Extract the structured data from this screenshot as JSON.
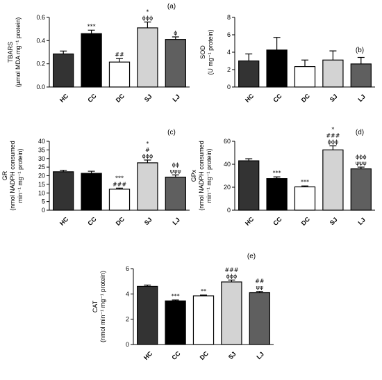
{
  "chart_data": [
    {
      "type": "bar",
      "panel": "(a)",
      "categories": [
        "HC",
        "CC",
        "DC",
        "SJ",
        "LJ"
      ],
      "values": [
        0.285,
        0.46,
        0.215,
        0.51,
        0.41
      ],
      "errors": [
        0.025,
        0.03,
        0.03,
        0.05,
        0.022
      ],
      "colors": [
        "#333333",
        "#000000",
        "#ffffff",
        "#d3d3d3",
        "#5f5f5f"
      ],
      "annotations": [
        [],
        [
          "***"
        ],
        [
          "##"
        ],
        [
          "*",
          "ϕϕϕ"
        ],
        [
          "ϕ"
        ]
      ],
      "ylabel": [
        "TBARS",
        "(µmol MDA mg⁻¹ protein)"
      ],
      "ylim": [
        0,
        0.6
      ],
      "yticks": [
        0.0,
        0.2,
        0.4,
        0.6
      ],
      "ytick_labels": [
        "0.0",
        "0.2",
        "0.4",
        "0.6"
      ]
    },
    {
      "type": "bar",
      "panel": "(b)",
      "categories": [
        "HC",
        "CC",
        "DC",
        "SJ",
        "LJ"
      ],
      "values": [
        3.0,
        4.25,
        2.35,
        3.1,
        2.65
      ],
      "errors": [
        0.8,
        1.45,
        0.75,
        1.05,
        0.75
      ],
      "colors": [
        "#333333",
        "#000000",
        "#ffffff",
        "#d3d3d3",
        "#5f5f5f"
      ],
      "annotations": [
        [],
        [],
        [],
        [],
        []
      ],
      "ylabel": [
        "SOD",
        "(U mg⁻¹ protein)"
      ],
      "ylim": [
        0,
        8
      ],
      "yticks": [
        0,
        2,
        4,
        6,
        8
      ],
      "ytick_labels": [
        "0",
        "2",
        "4",
        "6",
        "8"
      ]
    },
    {
      "type": "bar",
      "panel": "(c)",
      "categories": [
        "HC",
        "CC",
        "DC",
        "SJ",
        "LJ"
      ],
      "values": [
        22.3,
        21.4,
        12.2,
        27.5,
        19.2
      ],
      "errors": [
        0.9,
        1.2,
        0.6,
        1.6,
        1.3
      ],
      "colors": [
        "#333333",
        "#000000",
        "#ffffff",
        "#d3d3d3",
        "#5f5f5f"
      ],
      "annotations": [
        [],
        [],
        [
          "***",
          "###"
        ],
        [
          "*",
          "#",
          "ϕϕϕ"
        ],
        [
          "ϕϕ",
          "ψψψ"
        ]
      ],
      "ylabel": [
        "GR",
        "(nmol NADPH consumed",
        "min⁻¹ mg⁻¹ protein)"
      ],
      "ylim": [
        0,
        40
      ],
      "yticks": [
        0,
        5,
        10,
        15,
        20,
        25,
        30,
        35,
        40
      ],
      "ytick_labels": [
        "0",
        "5",
        "10",
        "15",
        "20",
        "25",
        "30",
        "35",
        "40"
      ]
    },
    {
      "type": "bar",
      "panel": "(d)",
      "categories": [
        "HC",
        "CC",
        "DC",
        "SJ",
        "LJ"
      ],
      "values": [
        43.0,
        27.5,
        20.3,
        52.5,
        36.0
      ],
      "errors": [
        1.8,
        1.5,
        0.8,
        3.5,
        1.5
      ],
      "colors": [
        "#333333",
        "#000000",
        "#ffffff",
        "#d3d3d3",
        "#5f5f5f"
      ],
      "annotations": [
        [],
        [
          "***"
        ],
        [
          "***"
        ],
        [
          "*",
          "###",
          "ϕϕϕ"
        ],
        [
          "ϕϕϕ",
          "ψψψ"
        ]
      ],
      "ylabel": [
        "GPx",
        "(nmol NADPH consumed",
        "min⁻¹ mg⁻¹ protein)"
      ],
      "ylim": [
        0,
        60
      ],
      "yticks": [
        0,
        20,
        40,
        60
      ],
      "ytick_labels": [
        "0",
        "20",
        "40",
        "60"
      ]
    },
    {
      "type": "bar",
      "panel": "(e)",
      "categories": [
        "HC",
        "CC",
        "DC",
        "SJ",
        "LJ"
      ],
      "values": [
        4.6,
        3.45,
        3.85,
        4.95,
        4.1
      ],
      "errors": [
        0.1,
        0.07,
        0.06,
        0.15,
        0.1
      ],
      "colors": [
        "#333333",
        "#000000",
        "#ffffff",
        "#d3d3d3",
        "#5f5f5f"
      ],
      "annotations": [
        [],
        [
          "***"
        ],
        [
          "**"
        ],
        [
          "###",
          "ϕϕϕ"
        ],
        [
          "##",
          "ψψ"
        ]
      ],
      "ylabel": [
        "CAT",
        "(nmol min⁻¹ mg⁻¹ protein)"
      ],
      "ylim": [
        0,
        6
      ],
      "yticks": [
        0,
        2,
        4,
        6
      ],
      "ytick_labels": [
        "0",
        "2",
        "4",
        "6"
      ]
    }
  ]
}
